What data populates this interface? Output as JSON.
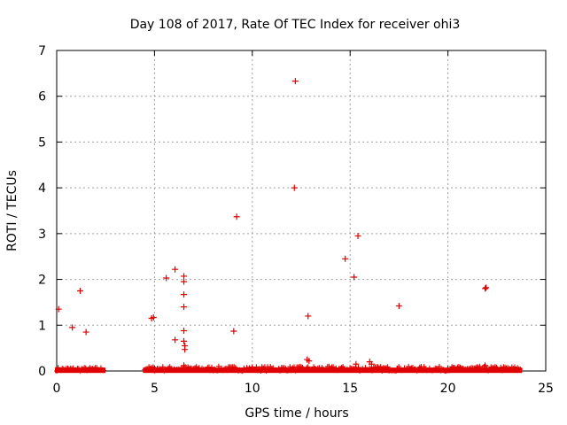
{
  "chart_data": {
    "type": "scatter",
    "title": "Day 108 of 2017, Rate Of TEC Index for receiver ohi3",
    "xlabel": "GPS time / hours",
    "ylabel": "ROTI / TECUs",
    "xlim": [
      0,
      25
    ],
    "ylim": [
      0,
      7
    ],
    "xticks": [
      0,
      5,
      10,
      15,
      20,
      25
    ],
    "yticks": [
      0,
      1,
      2,
      3,
      4,
      5,
      6,
      7
    ],
    "grid": true,
    "marker": "+",
    "marker_color": "#e00000",
    "baseline_segments": [
      {
        "x_start": 0.0,
        "x_end": 2.4,
        "y_max": 0.08
      },
      {
        "x_start": 4.5,
        "x_end": 23.7,
        "y_max": 0.1
      }
    ],
    "baseline_bumps": [
      {
        "x": 12.8,
        "y": 0.25
      },
      {
        "x": 12.9,
        "y": 0.22
      },
      {
        "x": 15.3,
        "y": 0.15
      },
      {
        "x": 16.0,
        "y": 0.2
      },
      {
        "x": 16.1,
        "y": 0.15
      },
      {
        "x": 6.5,
        "y": 0.12
      },
      {
        "x": 21.9,
        "y": 0.12
      }
    ],
    "points": [
      {
        "x": 0.1,
        "y": 1.35
      },
      {
        "x": 0.8,
        "y": 0.95
      },
      {
        "x": 1.2,
        "y": 1.75
      },
      {
        "x": 1.5,
        "y": 0.85
      },
      {
        "x": 4.85,
        "y": 1.15
      },
      {
        "x": 4.95,
        "y": 1.17
      },
      {
        "x": 5.6,
        "y": 2.03
      },
      {
        "x": 6.05,
        "y": 2.22
      },
      {
        "x": 6.05,
        "y": 0.68
      },
      {
        "x": 6.5,
        "y": 2.07
      },
      {
        "x": 6.5,
        "y": 1.95
      },
      {
        "x": 6.5,
        "y": 1.67
      },
      {
        "x": 6.5,
        "y": 1.4
      },
      {
        "x": 6.5,
        "y": 0.88
      },
      {
        "x": 6.5,
        "y": 0.65
      },
      {
        "x": 6.55,
        "y": 0.55
      },
      {
        "x": 6.55,
        "y": 0.47
      },
      {
        "x": 9.05,
        "y": 0.87
      },
      {
        "x": 9.2,
        "y": 3.37
      },
      {
        "x": 12.15,
        "y": 4.0
      },
      {
        "x": 12.2,
        "y": 6.33
      },
      {
        "x": 12.85,
        "y": 1.2
      },
      {
        "x": 14.75,
        "y": 2.45
      },
      {
        "x": 15.2,
        "y": 2.05
      },
      {
        "x": 15.4,
        "y": 2.95
      },
      {
        "x": 17.5,
        "y": 1.42
      },
      {
        "x": 21.9,
        "y": 1.8
      },
      {
        "x": 21.95,
        "y": 1.82
      }
    ]
  }
}
